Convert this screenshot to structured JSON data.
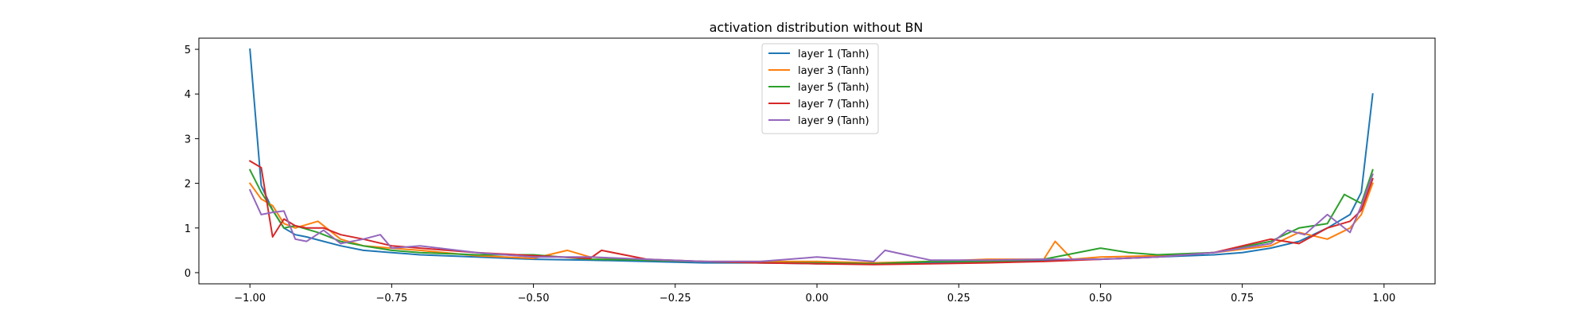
{
  "chart_data": {
    "type": "line",
    "title": "activation distribution without BN",
    "xlabel": "",
    "ylabel": "",
    "xlim": [
      -1.09,
      1.09
    ],
    "ylim": [
      -0.25,
      5.25
    ],
    "xticks": [
      -1.0,
      -0.75,
      -0.5,
      -0.25,
      0.0,
      0.25,
      0.5,
      0.75,
      1.0
    ],
    "xtick_labels": [
      "−1.00",
      "−0.75",
      "−0.50",
      "−0.25",
      "0.00",
      "0.25",
      "0.50",
      "0.75",
      "1.00"
    ],
    "yticks": [
      0,
      1,
      2,
      3,
      4,
      5
    ],
    "ytick_labels": [
      "0",
      "1",
      "2",
      "3",
      "4",
      "5"
    ],
    "grid": false,
    "legend_position": "top-center",
    "series": [
      {
        "name": "layer 1 (Tanh)",
        "color": "#1f77b4",
        "x": [
          -1.0,
          -0.98,
          -0.96,
          -0.94,
          -0.92,
          -0.9,
          -0.87,
          -0.84,
          -0.8,
          -0.75,
          -0.7,
          -0.6,
          -0.5,
          -0.4,
          -0.3,
          -0.2,
          -0.1,
          0.0,
          0.1,
          0.2,
          0.3,
          0.4,
          0.5,
          0.6,
          0.7,
          0.75,
          0.8,
          0.85,
          0.9,
          0.94,
          0.96,
          0.98
        ],
        "y": [
          5.0,
          1.95,
          1.4,
          1.0,
          0.85,
          0.8,
          0.7,
          0.6,
          0.5,
          0.45,
          0.4,
          0.35,
          0.3,
          0.28,
          0.25,
          0.22,
          0.22,
          0.2,
          0.22,
          0.22,
          0.25,
          0.28,
          0.3,
          0.35,
          0.4,
          0.45,
          0.55,
          0.7,
          1.0,
          1.3,
          1.8,
          4.0
        ]
      },
      {
        "name": "layer 3 (Tanh)",
        "color": "#ff7f0e",
        "x": [
          -1.0,
          -0.98,
          -0.96,
          -0.94,
          -0.92,
          -0.88,
          -0.84,
          -0.8,
          -0.75,
          -0.7,
          -0.6,
          -0.5,
          -0.44,
          -0.4,
          -0.3,
          -0.2,
          -0.1,
          0.0,
          0.1,
          0.2,
          0.3,
          0.4,
          0.42,
          0.45,
          0.5,
          0.6,
          0.7,
          0.8,
          0.85,
          0.9,
          0.94,
          0.96,
          0.98
        ],
        "y": [
          2.0,
          1.65,
          1.5,
          1.1,
          1.0,
          1.15,
          0.75,
          0.6,
          0.55,
          0.5,
          0.38,
          0.32,
          0.5,
          0.35,
          0.28,
          0.25,
          0.25,
          0.25,
          0.22,
          0.25,
          0.3,
          0.3,
          0.7,
          0.3,
          0.35,
          0.38,
          0.45,
          0.6,
          0.9,
          0.75,
          1.0,
          1.3,
          2.0
        ]
      },
      {
        "name": "layer 5 (Tanh)",
        "color": "#2ca02c",
        "x": [
          -1.0,
          -0.98,
          -0.96,
          -0.94,
          -0.92,
          -0.88,
          -0.84,
          -0.8,
          -0.75,
          -0.7,
          -0.6,
          -0.5,
          -0.4,
          -0.3,
          -0.2,
          -0.1,
          0.0,
          0.1,
          0.2,
          0.3,
          0.4,
          0.5,
          0.55,
          0.6,
          0.7,
          0.8,
          0.85,
          0.9,
          0.93,
          0.96,
          0.98
        ],
        "y": [
          2.3,
          1.8,
          1.4,
          1.0,
          1.05,
          0.9,
          0.7,
          0.6,
          0.5,
          0.45,
          0.4,
          0.4,
          0.3,
          0.28,
          0.25,
          0.22,
          0.22,
          0.2,
          0.25,
          0.25,
          0.3,
          0.55,
          0.45,
          0.4,
          0.45,
          0.7,
          1.0,
          1.1,
          1.75,
          1.55,
          2.3
        ]
      },
      {
        "name": "layer 7 (Tanh)",
        "color": "#d62728",
        "x": [
          -1.0,
          -0.98,
          -0.96,
          -0.94,
          -0.92,
          -0.9,
          -0.87,
          -0.84,
          -0.8,
          -0.75,
          -0.7,
          -0.6,
          -0.5,
          -0.4,
          -0.38,
          -0.3,
          -0.2,
          -0.1,
          0.0,
          0.1,
          0.2,
          0.3,
          0.4,
          0.5,
          0.6,
          0.7,
          0.8,
          0.85,
          0.9,
          0.94,
          0.96,
          0.98
        ],
        "y": [
          2.5,
          2.35,
          0.8,
          1.2,
          1.05,
          1.0,
          1.0,
          0.85,
          0.75,
          0.6,
          0.55,
          0.45,
          0.38,
          0.32,
          0.5,
          0.3,
          0.25,
          0.22,
          0.2,
          0.18,
          0.2,
          0.22,
          0.25,
          0.3,
          0.35,
          0.45,
          0.75,
          0.65,
          1.0,
          1.15,
          1.4,
          2.1
        ]
      },
      {
        "name": "layer 9 (Tanh)",
        "color": "#9467bd",
        "x": [
          -1.0,
          -0.98,
          -0.96,
          -0.94,
          -0.92,
          -0.9,
          -0.87,
          -0.84,
          -0.8,
          -0.77,
          -0.75,
          -0.7,
          -0.6,
          -0.5,
          -0.4,
          -0.3,
          -0.2,
          -0.1,
          0.0,
          0.1,
          0.12,
          0.2,
          0.3,
          0.4,
          0.5,
          0.6,
          0.7,
          0.8,
          0.83,
          0.86,
          0.9,
          0.94,
          0.96,
          0.98
        ],
        "y": [
          1.85,
          1.3,
          1.35,
          1.38,
          0.75,
          0.7,
          0.95,
          0.65,
          0.75,
          0.85,
          0.55,
          0.6,
          0.45,
          0.35,
          0.35,
          0.3,
          0.25,
          0.25,
          0.35,
          0.25,
          0.5,
          0.28,
          0.28,
          0.3,
          0.3,
          0.35,
          0.45,
          0.65,
          0.95,
          0.85,
          1.3,
          0.9,
          1.5,
          2.2
        ]
      }
    ]
  }
}
